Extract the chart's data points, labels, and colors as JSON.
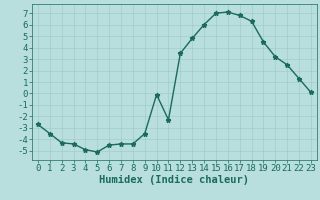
{
  "x": [
    0,
    1,
    2,
    3,
    4,
    5,
    6,
    7,
    8,
    9,
    10,
    11,
    12,
    13,
    14,
    15,
    16,
    17,
    18,
    19,
    20,
    21,
    22,
    23
  ],
  "y": [
    -2.7,
    -3.5,
    -4.3,
    -4.4,
    -4.9,
    -5.1,
    -4.5,
    -4.4,
    -4.4,
    -3.5,
    -0.1,
    -2.3,
    3.5,
    4.8,
    6.0,
    7.0,
    7.1,
    6.8,
    6.3,
    4.5,
    3.2,
    2.5,
    1.3,
    0.1
  ],
  "line_color": "#1a6b5a",
  "marker": "*",
  "bg_color": "#b8dede",
  "grid_color": "#a0c8c8",
  "xlabel": "Humidex (Indice chaleur)",
  "ylim": [
    -5.8,
    7.8
  ],
  "xlim": [
    -0.5,
    23.5
  ],
  "yticks": [
    -5,
    -4,
    -3,
    -2,
    -1,
    0,
    1,
    2,
    3,
    4,
    5,
    6,
    7
  ],
  "xticks": [
    0,
    1,
    2,
    3,
    4,
    5,
    6,
    7,
    8,
    9,
    10,
    11,
    12,
    13,
    14,
    15,
    16,
    17,
    18,
    19,
    20,
    21,
    22,
    23
  ],
  "tick_color": "#1a6b5a",
  "label_fontsize": 6.5,
  "xlabel_fontsize": 7.5,
  "linewidth": 1.0,
  "markersize": 3.5
}
